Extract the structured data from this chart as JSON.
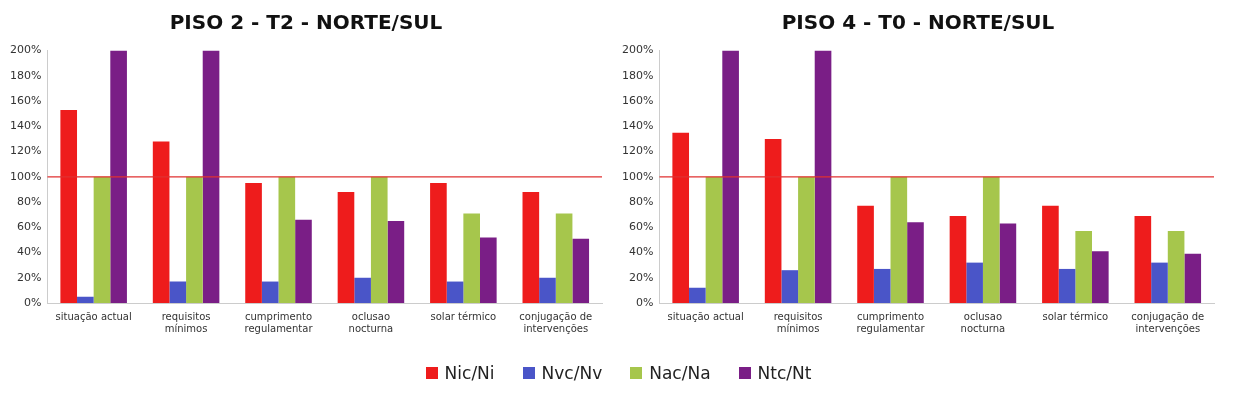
{
  "chart_data": [
    {
      "type": "bar",
      "title": "PISO 2 - T2 - NORTE/SUL",
      "categories": [
        "situação actual",
        "requisitos\nmínimos",
        "cumprimento\nregulamentar",
        "oclusao\nnocturna",
        "solar térmico",
        "conjugação de\nintervenções"
      ],
      "series": [
        {
          "name": "Nic/Ni",
          "color": "#ee1c1c",
          "values": [
            153,
            128,
            95,
            88,
            95,
            88
          ]
        },
        {
          "name": "Nvc/Nv",
          "color": "#4a55c8",
          "values": [
            5,
            17,
            17,
            20,
            17,
            20
          ]
        },
        {
          "name": "Nac/Na",
          "color": "#a6c64c",
          "values": [
            100,
            100,
            100,
            100,
            71,
            71
          ]
        },
        {
          "name": "Ntc/Nt",
          "color": "#7a1e86",
          "values": [
            200,
            200,
            66,
            65,
            52,
            51
          ]
        }
      ],
      "ylim": [
        0,
        200
      ],
      "yticks": [
        {
          "value": 0,
          "label": "0%"
        },
        {
          "value": 20,
          "label": "20%"
        },
        {
          "value": 40,
          "label": "40%"
        },
        {
          "value": 60,
          "label": "60%"
        },
        {
          "value": 80,
          "label": "80%"
        },
        {
          "value": 100,
          "label": "100%"
        },
        {
          "value": 120,
          "label": "120%"
        },
        {
          "value": 140,
          "label": "140%"
        },
        {
          "value": 160,
          "label": "160%"
        },
        {
          "value": 180,
          "label": "180%"
        },
        {
          "value": 200,
          "label": "200%"
        }
      ],
      "ref_lines": [
        {
          "axis": "y",
          "value": 100,
          "color": "#e03030"
        }
      ],
      "grid": false,
      "legend": "bottom"
    },
    {
      "type": "bar",
      "title": "PISO 4 - T0 - NORTE/SUL",
      "categories": [
        "situação actual",
        "requisitos\nmínimos",
        "cumprimento\nregulamentar",
        "oclusao\nnocturna",
        "solar térmico",
        "conjugação de\nintervenções"
      ],
      "series": [
        {
          "color": "#ee1c1c",
          "values": [
            135,
            130,
            77,
            69,
            77,
            69
          ]
        },
        {
          "color": "#4a55c8",
          "values": [
            12,
            26,
            27,
            32,
            27,
            32
          ]
        },
        {
          "color": "#a6c64c",
          "values": [
            100,
            100,
            100,
            100,
            57,
            57
          ]
        },
        {
          "color": "#7a1e86",
          "values": [
            200,
            200,
            64,
            63,
            41,
            39
          ]
        }
      ],
      "ylim": [
        0,
        200
      ],
      "yticks": [
        {
          "value": 0,
          "label": "0%"
        },
        {
          "value": 20,
          "label": "20%"
        },
        {
          "value": 40,
          "label": "40%"
        },
        {
          "value": 60,
          "label": "60%"
        },
        {
          "value": 80,
          "label": "80%"
        },
        {
          "value": 100,
          "label": "100%"
        },
        {
          "value": 120,
          "label": "120%"
        },
        {
          "value": 140,
          "label": "140%"
        },
        {
          "value": 160,
          "label": "160%"
        },
        {
          "value": 180,
          "label": "180%"
        },
        {
          "value": 200,
          "label": "200%"
        }
      ],
      "ref_lines": [
        {
          "axis": "y",
          "value": 100,
          "color": "#e03030"
        }
      ],
      "grid": false
    }
  ]
}
